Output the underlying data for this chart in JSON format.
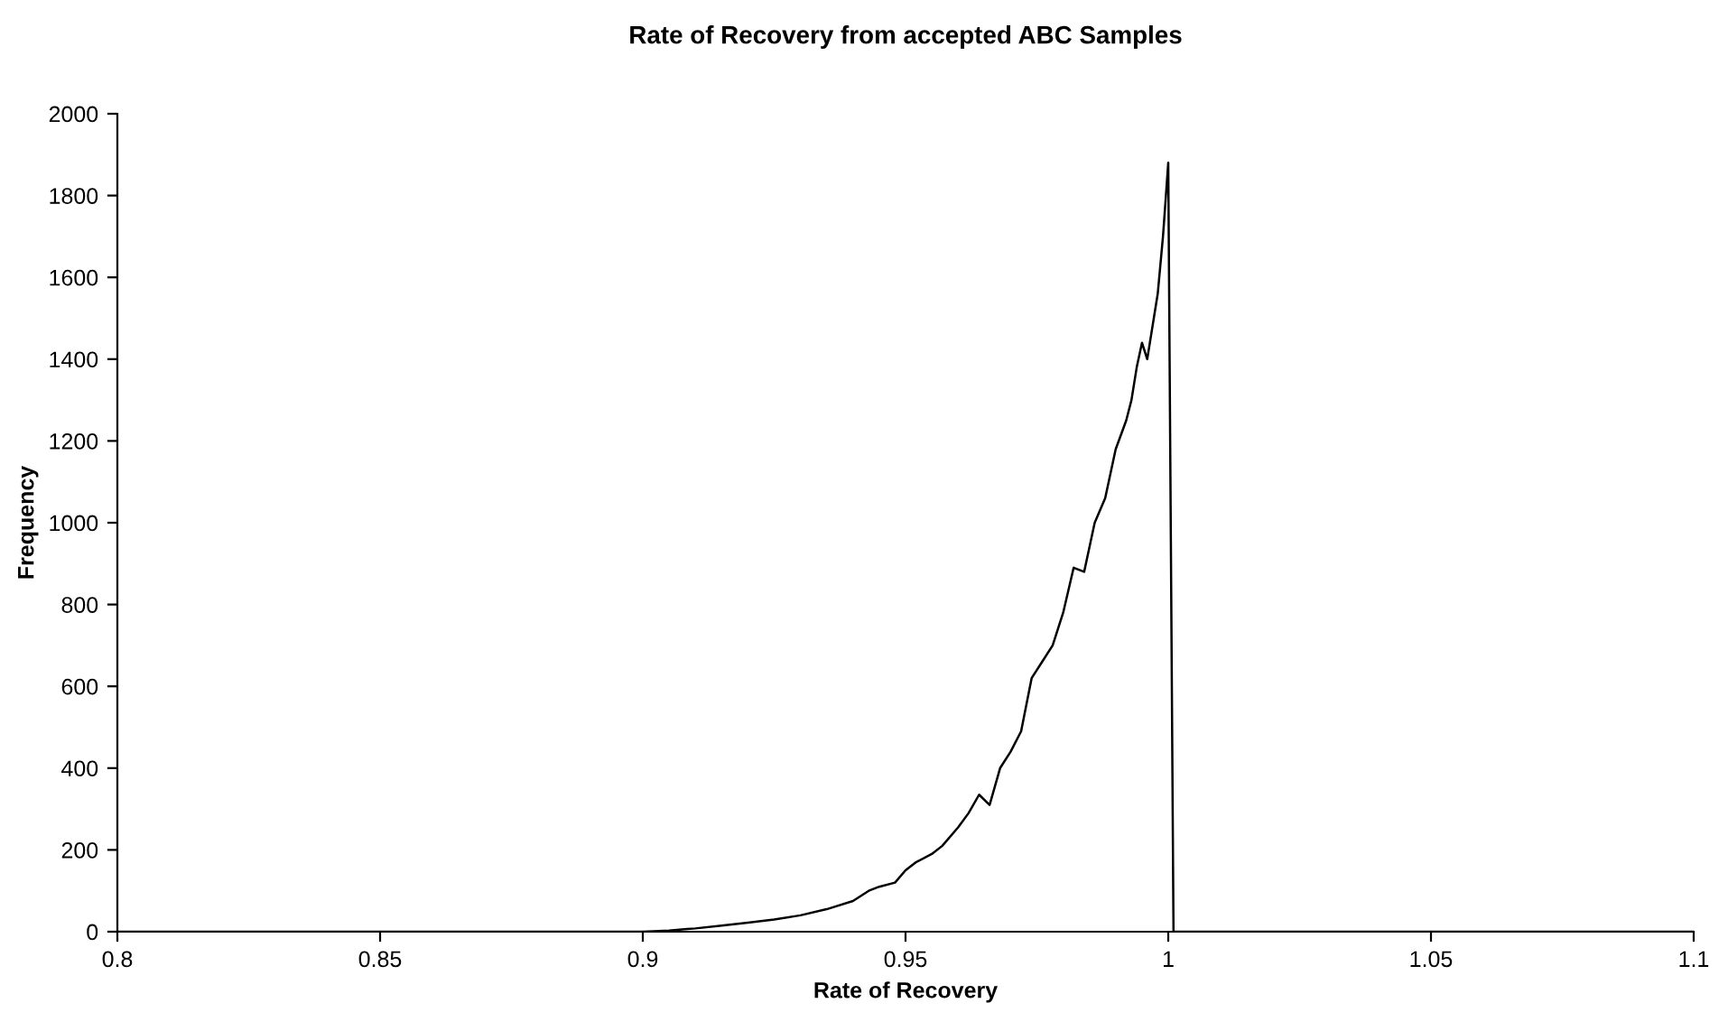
{
  "chart_data": {
    "type": "line",
    "title": "Rate of Recovery from accepted ABC Samples",
    "xlabel": "Rate of Recovery",
    "ylabel": "Frequency",
    "series": [
      {
        "color": "#000000",
        "x": [
          0.8,
          0.9,
          0.905,
          0.91,
          0.915,
          0.92,
          0.925,
          0.93,
          0.935,
          0.94,
          0.943,
          0.945,
          0.948,
          0.95,
          0.952,
          0.955,
          0.957,
          0.96,
          0.962,
          0.964,
          0.966,
          0.968,
          0.97,
          0.972,
          0.974,
          0.976,
          0.978,
          0.98,
          0.982,
          0.984,
          0.986,
          0.988,
          0.99,
          0.992,
          0.993,
          0.994,
          0.995,
          0.996,
          0.998,
          0.999,
          1.0,
          1.0005,
          1.001,
          1.1
        ],
        "values": [
          0,
          0,
          3,
          8,
          15,
          22,
          30,
          40,
          55,
          75,
          100,
          110,
          120,
          150,
          170,
          190,
          210,
          255,
          290,
          335,
          310,
          400,
          440,
          490,
          620,
          660,
          700,
          780,
          890,
          880,
          1000,
          1060,
          1180,
          1250,
          1300,
          1380,
          1440,
          1400,
          1560,
          1700,
          1880,
          950,
          0,
          0
        ]
      }
    ],
    "xlim": [
      0.8,
      1.1
    ],
    "xticks": [
      0.8,
      0.85,
      0.9,
      0.95,
      1,
      1.05,
      1.1
    ],
    "ylim": [
      0,
      2000
    ],
    "yticks": [
      0,
      200,
      400,
      600,
      800,
      1000,
      1200,
      1400,
      1600,
      1800,
      2000
    ],
    "grid": false,
    "legend": false,
    "marker": "none",
    "line_style": "solid"
  }
}
